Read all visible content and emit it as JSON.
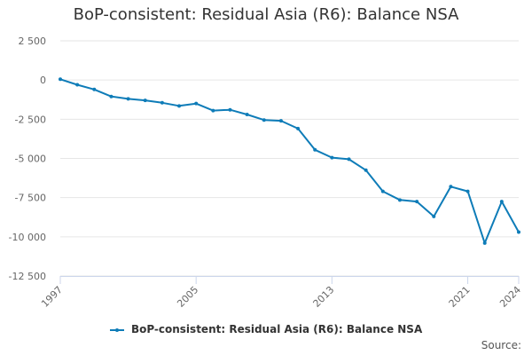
{
  "chart_data": {
    "type": "line",
    "title": "BoP-consistent: Residual Asia (R6): Balance NSA",
    "xlabel": "",
    "ylabel": "",
    "series": [
      {
        "name": "BoP-consistent: Residual Asia (R6): Balance NSA",
        "color": "#0e7cb8",
        "x": [
          1997,
          1998,
          1999,
          2000,
          2001,
          2002,
          2003,
          2004,
          2005,
          2006,
          2007,
          2008,
          2009,
          2010,
          2011,
          2012,
          2013,
          2014,
          2015,
          2016,
          2017,
          2018,
          2019,
          2020,
          2021,
          2022,
          2023,
          2024
        ],
        "values": [
          50,
          -300,
          -600,
          -1050,
          -1200,
          -1300,
          -1450,
          -1650,
          -1500,
          -1950,
          -1900,
          -2200,
          -2550,
          -2600,
          -3100,
          -4450,
          -4950,
          -5050,
          -5750,
          -7100,
          -7650,
          -7750,
          -8700,
          -6800,
          -7100,
          -10400,
          -7750,
          -9700
        ]
      }
    ],
    "xlim": [
      1997,
      2024
    ],
    "ylim": [
      -12500,
      2500
    ],
    "x_ticks": [
      "1997",
      "2005",
      "2013",
      "2021",
      "2024"
    ],
    "y_ticks": [
      2500,
      0,
      -2500,
      -5000,
      -7500,
      -10000,
      -12500
    ],
    "y_tick_labels": [
      "2 500",
      "0",
      "-2 500",
      "-5 000",
      "-7 500",
      "-10 000",
      "-12 500"
    ],
    "grid": true,
    "legend_position": "bottom-center"
  },
  "credits": "Source:"
}
